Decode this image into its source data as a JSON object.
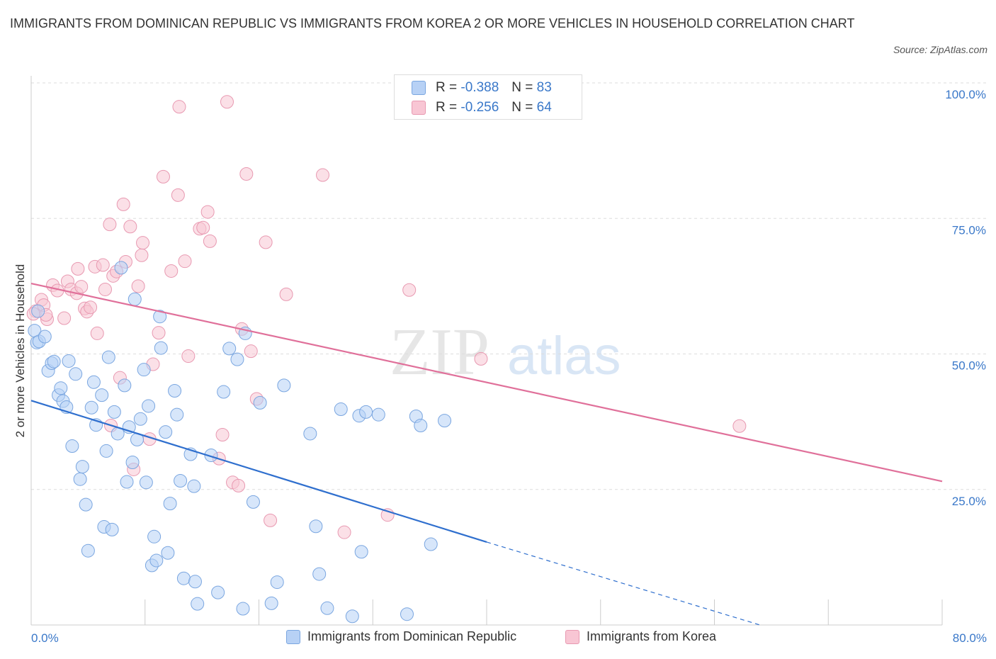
{
  "title": "IMMIGRANTS FROM DOMINICAN REPUBLIC VS IMMIGRANTS FROM KOREA 2 OR MORE VEHICLES IN HOUSEHOLD CORRELATION CHART",
  "source": "Source: ZipAtlas.com",
  "watermark": {
    "zip": "ZIP",
    "atlas": "atlas"
  },
  "colors": {
    "blue_fill": "#b7d1f5",
    "blue_stroke": "#7aa6e0",
    "blue_line": "#2f6fce",
    "pink_fill": "#f8c6d4",
    "pink_stroke": "#e899b1",
    "pink_line": "#e0709a",
    "grid": "#dddddd",
    "axis_text": "#3a78c9"
  },
  "legend_top": {
    "rows": [
      {
        "r_label": "R =",
        "r_value": "-0.388",
        "n_label": "N =",
        "n_value": "83"
      },
      {
        "r_label": "R =",
        "r_value": "-0.256",
        "n_label": "N =",
        "n_value": "64"
      }
    ]
  },
  "legend_bottom": [
    "Immigrants from Dominican Republic",
    "Immigrants from Korea"
  ],
  "x_axis": {
    "min_label": "0.0%",
    "max_label": "80.0%"
  },
  "chart_data": {
    "type": "scatter",
    "xlabel": "",
    "ylabel": "2 or more Vehicles in Household",
    "xlim": [
      0,
      80
    ],
    "ylim": [
      0,
      100
    ],
    "y_ticks": [
      25,
      50,
      75,
      100
    ],
    "y_tick_labels": [
      "25.0%",
      "50.0%",
      "75.0%",
      "100.0%"
    ],
    "grid": true,
    "series": [
      {
        "name": "Immigrants from Dominican Republic",
        "points": [
          [
            0.3,
            54.3
          ],
          [
            0.5,
            52.1
          ],
          [
            0.7,
            52.3
          ],
          [
            1.2,
            53.2
          ],
          [
            1.5,
            46.9
          ],
          [
            1.8,
            48.3
          ],
          [
            2.0,
            48.6
          ],
          [
            2.4,
            42.4
          ],
          [
            2.6,
            43.7
          ],
          [
            2.8,
            41.3
          ],
          [
            3.1,
            40.2
          ],
          [
            3.3,
            48.7
          ],
          [
            3.6,
            33.0
          ],
          [
            3.9,
            46.3
          ],
          [
            4.3,
            26.9
          ],
          [
            4.5,
            29.2
          ],
          [
            4.8,
            22.2
          ],
          [
            5.0,
            13.7
          ],
          [
            5.3,
            40.1
          ],
          [
            5.5,
            44.8
          ],
          [
            5.7,
            36.9
          ],
          [
            6.2,
            42.4
          ],
          [
            6.4,
            18.1
          ],
          [
            6.6,
            32.1
          ],
          [
            6.8,
            49.4
          ],
          [
            7.1,
            17.6
          ],
          [
            7.3,
            39.3
          ],
          [
            7.6,
            35.3
          ],
          [
            7.9,
            65.9
          ],
          [
            8.2,
            44.2
          ],
          [
            8.4,
            26.4
          ],
          [
            8.6,
            36.5
          ],
          [
            8.9,
            30.0
          ],
          [
            9.1,
            60.1
          ],
          [
            9.3,
            34.2
          ],
          [
            9.6,
            38.0
          ],
          [
            9.9,
            47.1
          ],
          [
            10.1,
            26.3
          ],
          [
            10.3,
            40.4
          ],
          [
            10.6,
            11.0
          ],
          [
            10.8,
            16.3
          ],
          [
            11.0,
            11.9
          ],
          [
            11.3,
            56.9
          ],
          [
            11.4,
            51.1
          ],
          [
            11.8,
            35.6
          ],
          [
            12.0,
            13.3
          ],
          [
            12.2,
            22.4
          ],
          [
            12.6,
            43.2
          ],
          [
            12.8,
            38.8
          ],
          [
            13.1,
            26.6
          ],
          [
            13.4,
            8.6
          ],
          [
            14.0,
            31.5
          ],
          [
            14.3,
            25.6
          ],
          [
            14.4,
            8.0
          ],
          [
            14.6,
            3.9
          ],
          [
            15.8,
            31.3
          ],
          [
            16.4,
            6.0
          ],
          [
            16.9,
            43.0
          ],
          [
            17.4,
            51.0
          ],
          [
            18.1,
            49.0
          ],
          [
            18.6,
            3.0
          ],
          [
            18.8,
            53.8
          ],
          [
            19.5,
            22.7
          ],
          [
            20.1,
            41.0
          ],
          [
            21.1,
            4.0
          ],
          [
            21.6,
            7.9
          ],
          [
            22.2,
            44.2
          ],
          [
            24.5,
            35.3
          ],
          [
            25.0,
            18.2
          ],
          [
            25.3,
            9.4
          ],
          [
            26.0,
            3.1
          ],
          [
            27.2,
            39.8
          ],
          [
            28.2,
            1.6
          ],
          [
            28.8,
            38.6
          ],
          [
            29.0,
            13.5
          ],
          [
            29.4,
            39.3
          ],
          [
            30.5,
            38.8
          ],
          [
            33.0,
            2.0
          ],
          [
            33.8,
            38.5
          ],
          [
            34.2,
            36.8
          ],
          [
            35.1,
            14.9
          ],
          [
            36.3,
            37.7
          ],
          [
            0.6,
            57.9
          ]
        ]
      },
      {
        "name": "Immigrants from Korea",
        "points": [
          [
            0.4,
            57.9
          ],
          [
            0.9,
            60.0
          ],
          [
            1.1,
            59.0
          ],
          [
            1.4,
            56.4
          ],
          [
            1.9,
            62.7
          ],
          [
            2.3,
            61.7
          ],
          [
            2.9,
            56.6
          ],
          [
            3.2,
            63.4
          ],
          [
            3.5,
            61.9
          ],
          [
            4.0,
            61.2
          ],
          [
            4.1,
            65.7
          ],
          [
            4.4,
            62.4
          ],
          [
            4.7,
            58.4
          ],
          [
            4.9,
            57.8
          ],
          [
            5.2,
            58.6
          ],
          [
            5.6,
            66.1
          ],
          [
            5.8,
            53.8
          ],
          [
            6.3,
            66.4
          ],
          [
            6.5,
            61.9
          ],
          [
            6.9,
            73.9
          ],
          [
            7.2,
            64.4
          ],
          [
            7.5,
            65.2
          ],
          [
            7.8,
            45.6
          ],
          [
            8.1,
            77.6
          ],
          [
            8.3,
            67.0
          ],
          [
            8.7,
            73.5
          ],
          [
            9.0,
            28.7
          ],
          [
            9.4,
            62.5
          ],
          [
            9.7,
            68.2
          ],
          [
            9.8,
            70.5
          ],
          [
            10.4,
            34.3
          ],
          [
            10.7,
            48.1
          ],
          [
            11.2,
            53.9
          ],
          [
            11.6,
            82.7
          ],
          [
            12.3,
            65.3
          ],
          [
            12.9,
            79.3
          ],
          [
            13.0,
            95.6
          ],
          [
            13.5,
            67.1
          ],
          [
            13.8,
            49.6
          ],
          [
            14.8,
            73.1
          ],
          [
            15.1,
            73.3
          ],
          [
            15.5,
            76.2
          ],
          [
            15.7,
            70.8
          ],
          [
            16.5,
            30.7
          ],
          [
            16.8,
            35.1
          ],
          [
            17.7,
            26.3
          ],
          [
            18.2,
            25.7
          ],
          [
            18.5,
            54.6
          ],
          [
            18.9,
            83.2
          ],
          [
            19.3,
            50.5
          ],
          [
            19.8,
            41.7
          ],
          [
            20.6,
            70.6
          ],
          [
            21.0,
            19.3
          ],
          [
            22.4,
            61.0
          ],
          [
            25.6,
            83.0
          ],
          [
            27.5,
            17.1
          ],
          [
            31.3,
            20.3
          ],
          [
            33.2,
            61.8
          ],
          [
            39.5,
            49.1
          ],
          [
            62.2,
            36.7
          ],
          [
            7.0,
            36.8
          ],
          [
            17.2,
            96.5
          ],
          [
            0.2,
            57.4
          ],
          [
            1.3,
            57.2
          ]
        ]
      }
    ],
    "trend_lines": [
      {
        "series": "Immigrants from Dominican Republic",
        "x": [
          0,
          40
        ],
        "y": [
          41.4,
          15.3
        ],
        "dashed_extension": {
          "x": [
            40,
            64
          ],
          "y": [
            15.3,
            0
          ]
        }
      },
      {
        "series": "Immigrants from Korea",
        "x": [
          0,
          80
        ],
        "y": [
          63.0,
          26.5
        ]
      }
    ]
  }
}
